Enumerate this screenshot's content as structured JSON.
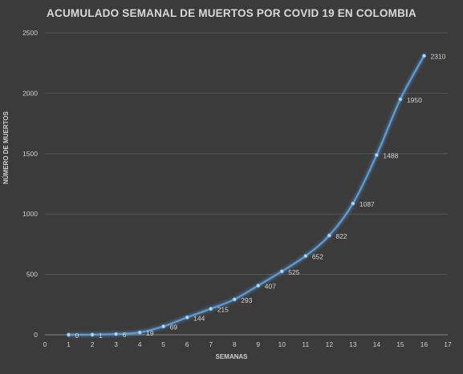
{
  "chart_data": {
    "type": "line",
    "title": "ACUMULADO SEMANAL DE MUERTOS POR COVID 19 EN COLOMBIA",
    "xlabel": "SEMANAS",
    "ylabel": "NÚMERO DE MUERTOS",
    "xlim": [
      0,
      17
    ],
    "ylim": [
      0,
      2500
    ],
    "x_ticks": [
      0,
      1,
      2,
      3,
      4,
      5,
      6,
      7,
      8,
      9,
      10,
      11,
      12,
      13,
      14,
      15,
      16,
      17
    ],
    "y_ticks": [
      0,
      500,
      1000,
      1500,
      2000,
      2500
    ],
    "grid": "horizontal",
    "series": [
      {
        "x": [
          1,
          2,
          3,
          4,
          5,
          6,
          7,
          8,
          9,
          10,
          11,
          12,
          13,
          14,
          15,
          16
        ],
        "values": [
          0,
          1,
          6,
          19,
          69,
          144,
          215,
          293,
          407,
          525,
          652,
          822,
          1087,
          1488,
          1950,
          2310
        ],
        "color": "#5b9bd5"
      }
    ]
  }
}
